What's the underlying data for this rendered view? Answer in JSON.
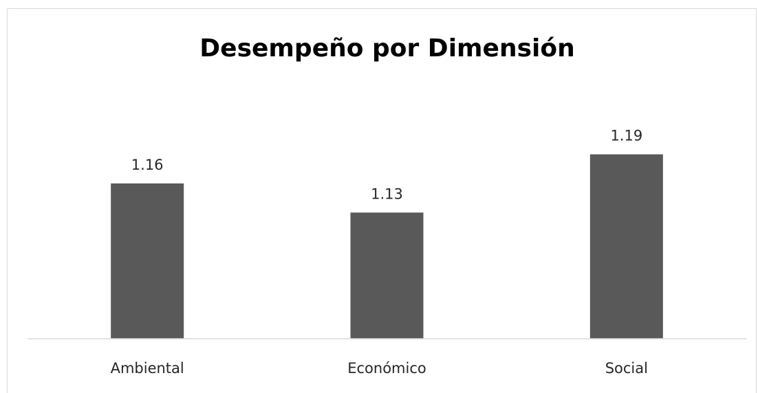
{
  "chart_data": {
    "type": "bar",
    "title": "Desempeño por Dimensión",
    "categories": [
      "Ambiental",
      "Económico",
      "Social"
    ],
    "values": [
      1.16,
      1.13,
      1.19
    ],
    "data_labels": [
      "1.16",
      "1.13",
      "1.19"
    ],
    "xlabel": "",
    "ylabel": "",
    "ylim": [
      1.0,
      1.24
    ],
    "grid": false,
    "legend": "none",
    "bar_color": "#595959"
  }
}
